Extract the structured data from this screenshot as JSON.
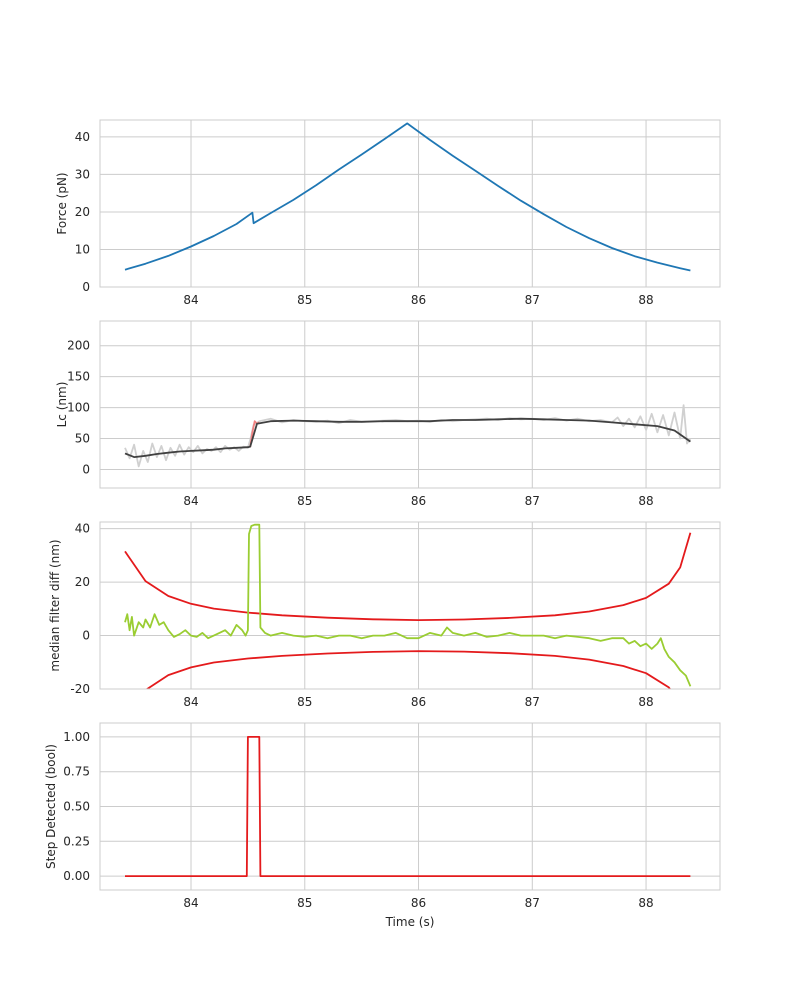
{
  "chart_data": [
    {
      "type": "line",
      "ylabel": "Force (pN)",
      "xlabel": "",
      "xlim": [
        83.2,
        88.65
      ],
      "ylim": [
        0,
        44.5
      ],
      "xticks": [
        84,
        85,
        86,
        87,
        88
      ],
      "yticks": [
        0,
        10,
        20,
        30,
        40
      ],
      "series": [
        {
          "color": "#1f77b4",
          "x": [
            83.42,
            83.6,
            83.8,
            84.0,
            84.2,
            84.4,
            84.54,
            84.55,
            84.7,
            84.9,
            85.1,
            85.3,
            85.5,
            85.7,
            85.9,
            86.1,
            86.3,
            86.5,
            86.7,
            86.9,
            87.1,
            87.3,
            87.5,
            87.7,
            87.9,
            88.1,
            88.3,
            88.39
          ],
          "y": [
            4.6,
            6.2,
            8.3,
            10.8,
            13.6,
            16.8,
            19.8,
            17.0,
            19.7,
            23.2,
            27.1,
            31.3,
            35.3,
            39.4,
            43.6,
            39.2,
            35.0,
            31.0,
            26.9,
            23.0,
            19.4,
            16.0,
            13.0,
            10.4,
            8.2,
            6.5,
            5.0,
            4.4
          ]
        }
      ]
    },
    {
      "type": "line",
      "ylabel": "Lc (nm)",
      "xlabel": "",
      "xlim": [
        83.2,
        88.65
      ],
      "ylim": [
        -30,
        240
      ],
      "xticks": [
        84,
        85,
        86,
        87,
        88
      ],
      "yticks": [
        0,
        50,
        100,
        150,
        200
      ],
      "series": [
        {
          "color": "#d0d0d0",
          "x": [
            83.42,
            83.46,
            83.5,
            83.54,
            83.58,
            83.62,
            83.66,
            83.7,
            83.74,
            83.78,
            83.82,
            83.86,
            83.9,
            83.94,
            83.98,
            84.02,
            84.06,
            84.1,
            84.14,
            84.18,
            84.22,
            84.26,
            84.3,
            84.34,
            84.38,
            84.42,
            84.46,
            84.5,
            84.52,
            84.55,
            84.6,
            84.7,
            84.8,
            84.9,
            85.0,
            85.1,
            85.2,
            85.3,
            85.4,
            85.5,
            85.6,
            85.7,
            85.8,
            85.9,
            86.0,
            86.1,
            86.2,
            86.3,
            86.4,
            86.5,
            86.6,
            86.7,
            86.8,
            86.9,
            87.0,
            87.1,
            87.2,
            87.3,
            87.4,
            87.5,
            87.6,
            87.7,
            87.75,
            87.8,
            87.85,
            87.9,
            87.95,
            88.0,
            88.05,
            88.1,
            88.15,
            88.2,
            88.25,
            88.3,
            88.33,
            88.36,
            88.39
          ],
          "y": [
            35,
            18,
            40,
            5,
            30,
            12,
            42,
            20,
            38,
            15,
            35,
            22,
            40,
            24,
            36,
            28,
            38,
            26,
            33,
            30,
            36,
            28,
            38,
            32,
            36,
            30,
            37,
            35,
            48,
            72,
            78,
            82,
            76,
            80,
            78,
            77,
            79,
            75,
            80,
            77,
            78,
            79,
            80,
            78,
            79,
            77,
            80,
            78,
            80,
            81,
            82,
            80,
            83,
            81,
            82,
            80,
            83,
            79,
            82,
            78,
            80,
            76,
            84,
            70,
            82,
            68,
            86,
            64,
            90,
            60,
            88,
            55,
            92,
            50,
            104,
            42,
            50
          ]
        },
        {
          "color": "#f08080",
          "x": [
            84.52,
            84.54,
            84.56,
            84.58,
            84.6
          ],
          "y": [
            36,
            60,
            78,
            74,
            76
          ]
        },
        {
          "color": "#404040",
          "x": [
            83.42,
            83.5,
            83.6,
            83.7,
            83.8,
            83.9,
            84.0,
            84.1,
            84.2,
            84.3,
            84.4,
            84.5,
            84.52,
            84.58,
            84.7,
            84.9,
            85.1,
            85.3,
            85.5,
            85.7,
            85.9,
            86.1,
            86.3,
            86.5,
            86.7,
            86.9,
            87.1,
            87.3,
            87.5,
            87.7,
            87.9,
            88.1,
            88.25,
            88.39
          ],
          "y": [
            26,
            20,
            22,
            25,
            27,
            29,
            30,
            31,
            32,
            34,
            35,
            36,
            37,
            74,
            78,
            79,
            78,
            77,
            77,
            78,
            78,
            78,
            80,
            80,
            81,
            82,
            81,
            80,
            79,
            76,
            73,
            70,
            63,
            45
          ]
        }
      ]
    },
    {
      "type": "line",
      "ylabel": "median filter diff (nm)",
      "xlabel": "",
      "xlim": [
        83.2,
        88.65
      ],
      "ylim": [
        -20,
        42.5
      ],
      "xticks": [
        84,
        85,
        86,
        87,
        88
      ],
      "yticks": [
        -20,
        0,
        20,
        40
      ],
      "series": [
        {
          "color": "#e41a1c",
          "x": [
            83.42,
            83.6,
            83.8,
            84.0,
            84.2,
            84.5,
            84.8,
            85.2,
            85.6,
            86.0,
            86.4,
            86.8,
            87.2,
            87.5,
            87.8,
            88.0,
            88.2,
            88.3,
            88.39
          ],
          "y": [
            31.5,
            20.4,
            14.8,
            11.9,
            10.1,
            8.6,
            7.6,
            6.7,
            6.1,
            5.8,
            6.0,
            6.6,
            7.6,
            9.0,
            11.4,
            14.1,
            19.4,
            25.5,
            38.5
          ]
        },
        {
          "color": "#e41a1c",
          "x": [
            83.42,
            83.6,
            83.8,
            84.0,
            84.2,
            84.5,
            84.8,
            85.2,
            85.6,
            86.0,
            86.4,
            86.8,
            87.2,
            87.5,
            87.8,
            88.0,
            88.2,
            88.3,
            88.39
          ],
          "y": [
            -31.5,
            -20.4,
            -14.8,
            -11.9,
            -10.1,
            -8.6,
            -7.6,
            -6.7,
            -6.1,
            -5.8,
            -6.0,
            -6.6,
            -7.6,
            -9.0,
            -11.4,
            -14.1,
            -19.4,
            -25.5,
            -38.5
          ]
        },
        {
          "color": "#9acd32",
          "x": [
            83.42,
            83.44,
            83.46,
            83.48,
            83.5,
            83.54,
            83.58,
            83.6,
            83.64,
            83.68,
            83.72,
            83.76,
            83.8,
            83.85,
            83.9,
            83.95,
            84.0,
            84.05,
            84.1,
            84.15,
            84.2,
            84.25,
            84.3,
            84.35,
            84.4,
            84.45,
            84.48,
            84.5,
            84.51,
            84.53,
            84.56,
            84.58,
            84.6,
            84.61,
            84.65,
            84.7,
            84.8,
            84.9,
            85.0,
            85.1,
            85.2,
            85.3,
            85.4,
            85.5,
            85.6,
            85.7,
            85.8,
            85.9,
            86.0,
            86.1,
            86.2,
            86.25,
            86.3,
            86.4,
            86.5,
            86.6,
            86.7,
            86.8,
            86.9,
            87.0,
            87.1,
            87.2,
            87.3,
            87.4,
            87.5,
            87.6,
            87.7,
            87.8,
            87.85,
            87.9,
            87.95,
            88.0,
            88.05,
            88.1,
            88.13,
            88.16,
            88.2,
            88.25,
            88.3,
            88.35,
            88.39
          ],
          "y": [
            5,
            8,
            2,
            7,
            0,
            5,
            3,
            6,
            3,
            8,
            4,
            5,
            2,
            -0.5,
            0.5,
            2,
            0,
            -0.5,
            1,
            -1,
            0,
            1,
            2,
            0,
            4,
            2,
            0,
            2,
            38,
            41,
            41.5,
            41.5,
            41.5,
            3,
            1,
            0,
            1,
            0,
            -0.5,
            0,
            -1,
            0,
            0,
            -1,
            0,
            0,
            1,
            -1,
            -1,
            1,
            0,
            3,
            1,
            0,
            1,
            -0.5,
            0,
            1,
            0,
            0,
            0,
            -1,
            0,
            -0.5,
            -1,
            -2,
            -1,
            -1,
            -3,
            -2,
            -4,
            -3,
            -5,
            -3,
            -1,
            -5,
            -8,
            -10,
            -13,
            -15,
            -19
          ]
        }
      ]
    },
    {
      "type": "line",
      "ylabel": "Step Detected (bool)",
      "xlabel": "Time (s)",
      "xlim": [
        83.2,
        88.65
      ],
      "ylim": [
        -0.1,
        1.1
      ],
      "xticks": [
        84,
        85,
        86,
        87,
        88
      ],
      "yticks": [
        0.0,
        0.25,
        0.5,
        0.75,
        1.0
      ],
      "series": [
        {
          "color": "#e41a1c",
          "x": [
            83.42,
            84.49,
            84.5,
            84.6,
            84.61,
            88.39
          ],
          "y": [
            0,
            0,
            1,
            1,
            0,
            0
          ]
        }
      ]
    }
  ]
}
